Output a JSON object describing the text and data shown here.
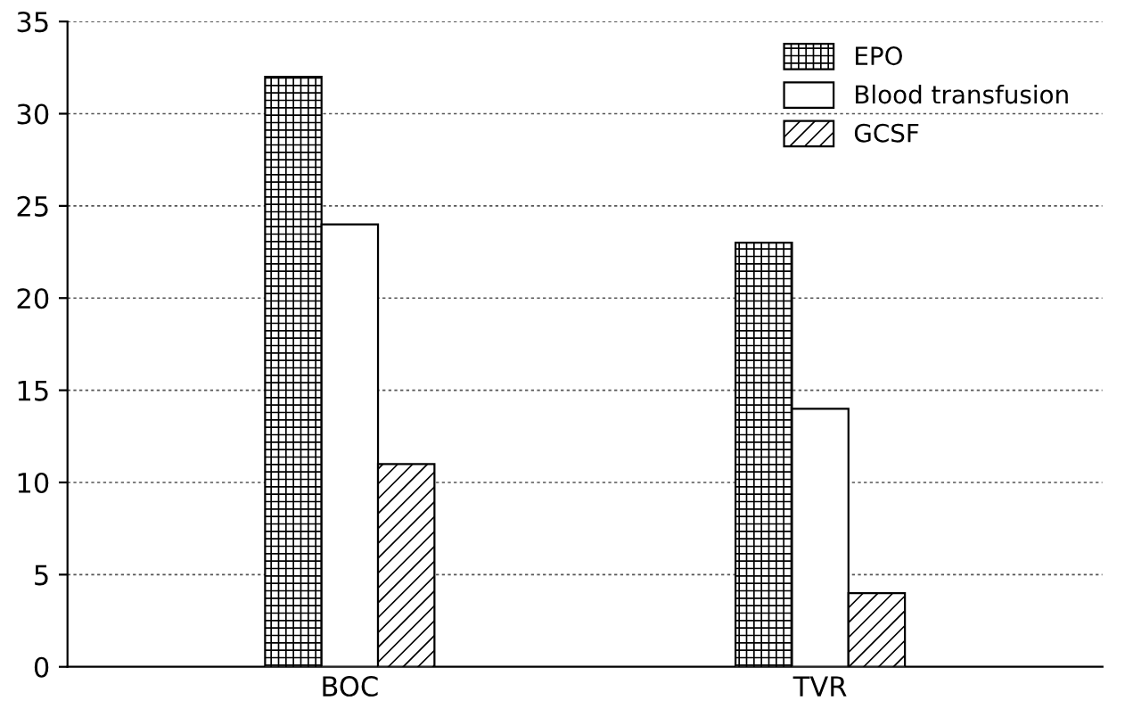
{
  "chart_data": {
    "type": "bar",
    "categories": [
      "BOC",
      "TVR"
    ],
    "series": [
      {
        "name": "EPO",
        "color": "#000000",
        "values": [
          32,
          23
        ]
      },
      {
        "name": "Blood transfusion",
        "color": "#ffffff",
        "values": [
          24,
          14
        ]
      },
      {
        "name": "GCSF",
        "color": "#000000",
        "values": [
          11,
          4
        ]
      }
    ],
    "ylim": [
      0,
      35
    ],
    "yticks": [
      0,
      5,
      10,
      15,
      20,
      25,
      30,
      35
    ],
    "grid": "y",
    "legend": "top right"
  }
}
